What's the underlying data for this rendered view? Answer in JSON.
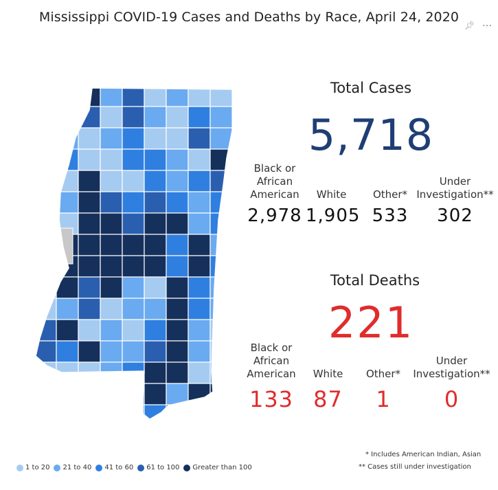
{
  "title": "Mississippi COVID-19 Cases and Deaths by Race, April 24, 2020",
  "icons": {
    "pin": "pin-icon",
    "more": "more-options-icon"
  },
  "colors": {
    "bin1": "#a6cbf1",
    "bin2": "#6aaaf0",
    "bin3": "#2f7fe0",
    "bin4": "#2a5fb0",
    "bin5": "#16305c",
    "no_data": "#c8c8c8",
    "cases_total": "#1f3e74",
    "deaths": "#e02c2c"
  },
  "legend": [
    {
      "label": "1 to 20",
      "color": "#a6cbf1"
    },
    {
      "label": "21 to 40",
      "color": "#6aaaf0"
    },
    {
      "label": "41 to 60",
      "color": "#2f7fe0"
    },
    {
      "label": "61 to 100",
      "color": "#2a5fb0"
    },
    {
      "label": "Greater than 100",
      "color": "#16305c"
    }
  ],
  "cases": {
    "heading": "Total Cases",
    "total": "5,718",
    "columns": [
      {
        "label_lines": [
          "Black or",
          "African",
          "American"
        ],
        "value": "2,978"
      },
      {
        "label_lines": [
          "White"
        ],
        "value": "1,905"
      },
      {
        "label_lines": [
          "Other*"
        ],
        "value": "533"
      },
      {
        "label_lines": [
          "Under",
          "Investigation**"
        ],
        "value": "302"
      }
    ]
  },
  "deaths": {
    "heading": "Total Deaths",
    "total": "221",
    "columns": [
      {
        "label_lines": [
          "Black or",
          "African",
          "American"
        ],
        "value": "133"
      },
      {
        "label_lines": [
          "White"
        ],
        "value": "87"
      },
      {
        "label_lines": [
          "Other*"
        ],
        "value": "1"
      },
      {
        "label_lines": [
          "Under",
          "Investigation**"
        ],
        "value": "0"
      }
    ]
  },
  "footnotes": [
    "* Includes American Indian, Asian",
    "** Cases still under investigation"
  ]
}
